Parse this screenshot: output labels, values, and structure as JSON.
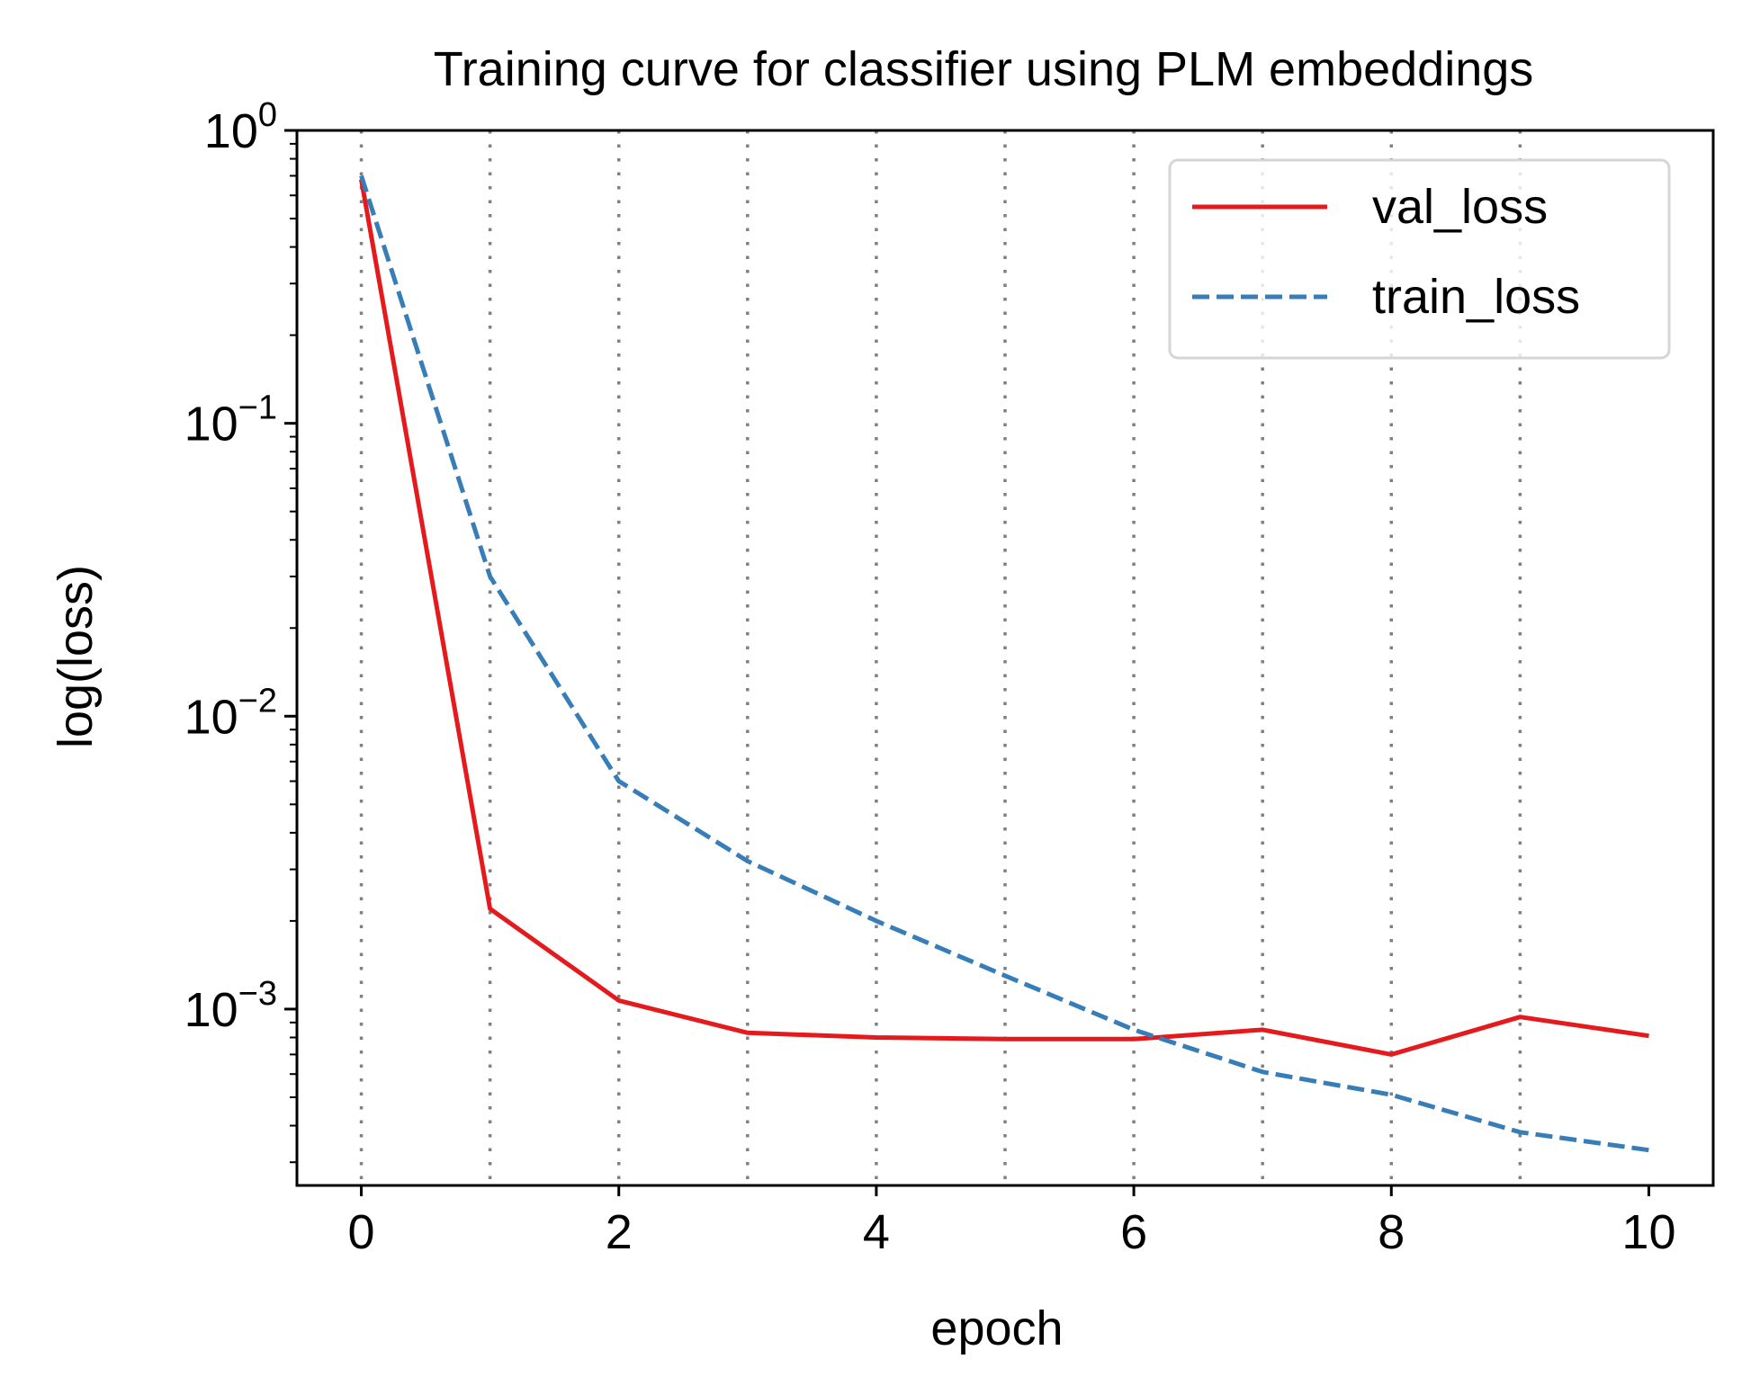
{
  "chart_data": {
    "type": "line",
    "title": "Training curve for classifier using PLM embeddings",
    "xlabel": "epoch",
    "ylabel": "log(loss)",
    "x": [
      0,
      1,
      2,
      3,
      4,
      5,
      6,
      7,
      8,
      9,
      10
    ],
    "xlim": [
      -0.5,
      10.5
    ],
    "ylim": [
      0.00025,
      1.0
    ],
    "yscale": "log",
    "xticks": [
      0,
      2,
      4,
      6,
      8,
      10
    ],
    "xtick_labels": [
      "0",
      "2",
      "4",
      "6",
      "8",
      "10"
    ],
    "yticks": [
      {
        "value": 1.0,
        "base": "10",
        "exp": "0"
      },
      {
        "value": 0.1,
        "base": "10",
        "exp": "−1"
      },
      {
        "value": 0.01,
        "base": "10",
        "exp": "−2"
      },
      {
        "value": 0.001,
        "base": "10",
        "exp": "−3"
      }
    ],
    "vertical_gridlines": [
      0,
      1,
      2,
      3,
      4,
      5,
      6,
      7,
      8,
      9
    ],
    "grid_color": "#808080",
    "legend_position": "top-right",
    "series": [
      {
        "name": "val_loss",
        "color": "#e41a1c",
        "linestyle": "solid",
        "values": [
          0.68,
          0.0022,
          0.00107,
          0.00083,
          0.0008,
          0.00079,
          0.00079,
          0.00085,
          0.0007,
          0.00094,
          0.00081
        ]
      },
      {
        "name": "train_loss",
        "color": "#377eb8",
        "linestyle": "dashed",
        "values": [
          0.7,
          0.03,
          0.006,
          0.0032,
          0.002,
          0.0013,
          0.00085,
          0.00061,
          0.00051,
          0.00038,
          0.00033
        ]
      }
    ]
  }
}
